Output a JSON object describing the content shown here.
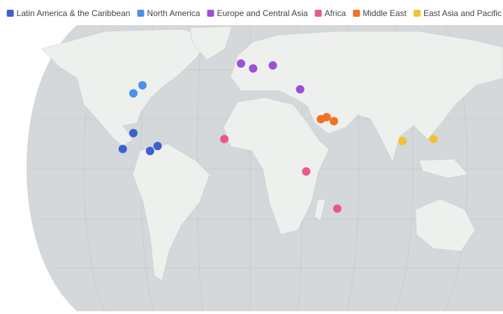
{
  "chart_data": {
    "type": "map",
    "series": [
      {
        "name": "Latin America & the Caribbean",
        "color": "#3d5fd0",
        "lon": [
          -77,
          -84,
          -61,
          -66
        ],
        "lat": [
          18,
          10,
          11.5,
          9
        ]
      },
      {
        "name": "North America",
        "color": "#4b90ea",
        "lon": [
          -71,
          -77
        ],
        "lat": [
          42,
          38
        ]
      },
      {
        "name": "Europe and Central Asia",
        "color": "#9b50d8",
        "lon": [
          -6,
          2,
          15,
          33
        ],
        "lat": [
          53,
          50.5,
          52,
          40
        ]
      },
      {
        "name": "Africa",
        "color": "#e9588b",
        "lon": [
          -17,
          37,
          57.5
        ],
        "lat": [
          15,
          -1.3,
          -20
        ]
      },
      {
        "name": "Middle East",
        "color": "#f07222",
        "lon": [
          46.7,
          50.5,
          55.3
        ],
        "lat": [
          25,
          26,
          24
        ]
      },
      {
        "name": "East Asia and Pacific",
        "color": "#f2c230",
        "lon": [
          100.5,
          121
        ],
        "lat": [
          14,
          15
        ]
      }
    ]
  }
}
